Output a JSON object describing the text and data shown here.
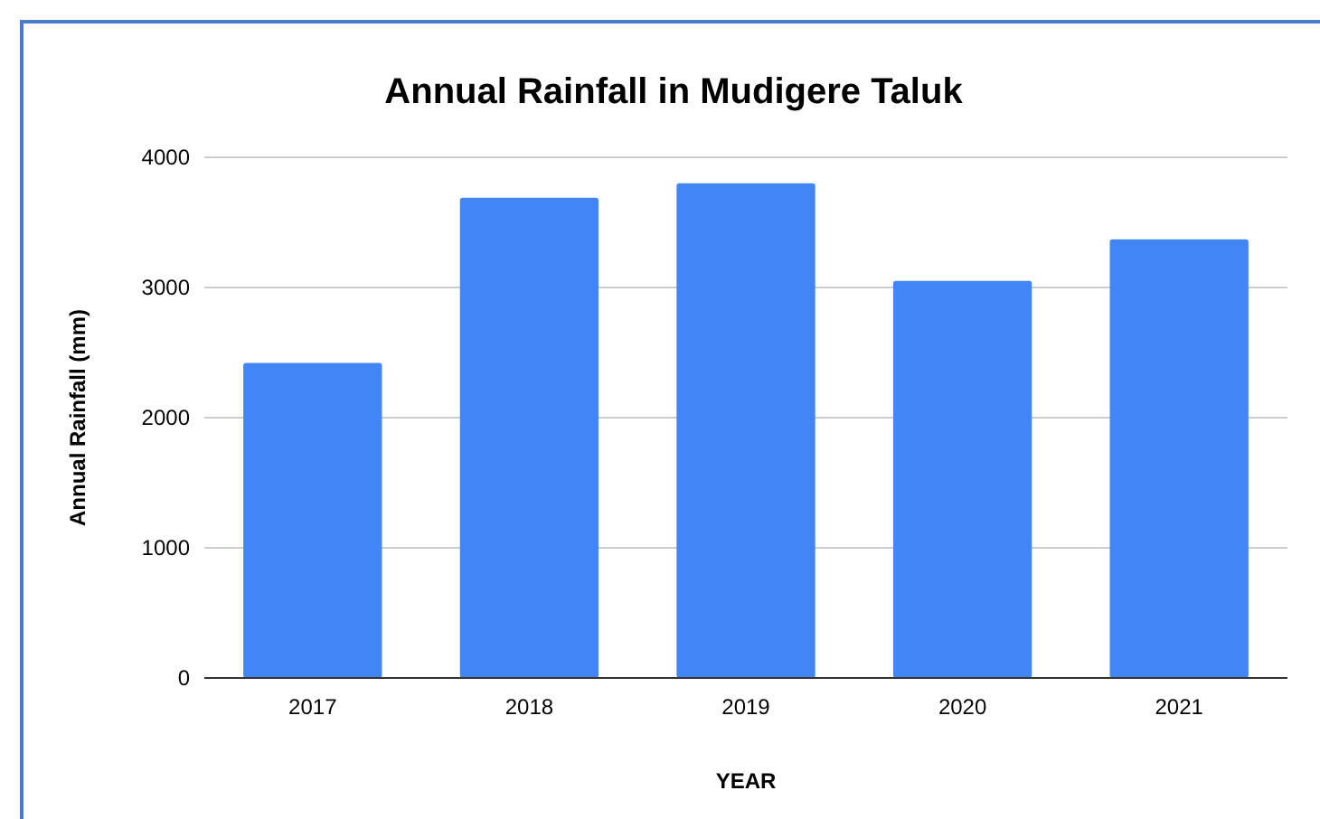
{
  "chart_data": {
    "type": "bar",
    "title": "Annual Rainfall in Mudigere Taluk",
    "xlabel": "YEAR",
    "ylabel": "Annual Rainfall (mm)",
    "categories": [
      "2017",
      "2018",
      "2019",
      "2020",
      "2021"
    ],
    "values": [
      2420,
      3690,
      3800,
      3050,
      3370
    ],
    "color": "#4285f4",
    "ylim": [
      0,
      4000
    ],
    "yticks": [
      0,
      1000,
      2000,
      3000,
      4000
    ],
    "grid": "y"
  }
}
